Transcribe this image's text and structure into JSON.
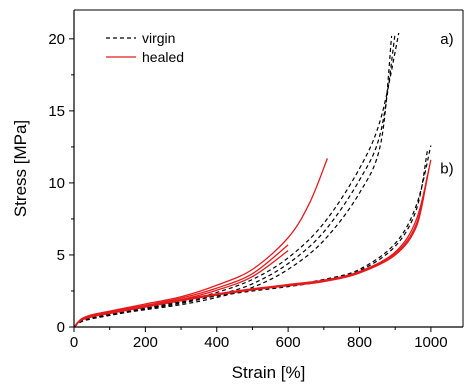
{
  "chart_data": {
    "type": "line",
    "title": "",
    "xlabel": "Strain [%]",
    "ylabel": "Stress [MPa]",
    "xlim": [
      0,
      1090
    ],
    "ylim": [
      0,
      22
    ],
    "x_ticks": [
      "0",
      "200",
      "400",
      "600",
      "800",
      "1000"
    ],
    "x_tick_values": [
      0,
      200,
      400,
      600,
      800,
      1000
    ],
    "y_ticks": [
      "0",
      "5",
      "10",
      "15",
      "20"
    ],
    "y_tick_values": [
      0,
      5,
      10,
      15,
      20
    ],
    "grid": false,
    "legend_position": "top-left",
    "legend": [
      {
        "label": "virgin",
        "style": "dashed",
        "color": "#000000"
      },
      {
        "label": "healed",
        "style": "solid",
        "color": "#e41a1c"
      }
    ],
    "annotations": [
      {
        "text": "a)",
        "x": 1045,
        "y": 20.0
      },
      {
        "text": "b)",
        "x": 1045,
        "y": 11.0
      }
    ],
    "series": [
      {
        "group": "virgin",
        "sample": "a",
        "points": [
          [
            0,
            0
          ],
          [
            20,
            0.45
          ],
          [
            50,
            0.7
          ],
          [
            100,
            0.95
          ],
          [
            200,
            1.35
          ],
          [
            300,
            1.8
          ],
          [
            400,
            2.4
          ],
          [
            500,
            3.3
          ],
          [
            600,
            4.8
          ],
          [
            700,
            7.2
          ],
          [
            800,
            11.0
          ],
          [
            860,
            14.5
          ],
          [
            910,
            20.4
          ]
        ]
      },
      {
        "group": "virgin",
        "sample": "a",
        "points": [
          [
            0,
            0
          ],
          [
            20,
            0.42
          ],
          [
            50,
            0.65
          ],
          [
            100,
            0.88
          ],
          [
            200,
            1.25
          ],
          [
            300,
            1.65
          ],
          [
            400,
            2.2
          ],
          [
            500,
            3.0
          ],
          [
            600,
            4.4
          ],
          [
            700,
            6.6
          ],
          [
            800,
            10.2
          ],
          [
            860,
            13.6
          ],
          [
            900,
            20.4
          ]
        ]
      },
      {
        "group": "virgin",
        "sample": "a",
        "points": [
          [
            0,
            0
          ],
          [
            20,
            0.4
          ],
          [
            50,
            0.62
          ],
          [
            100,
            0.85
          ],
          [
            200,
            1.2
          ],
          [
            300,
            1.55
          ],
          [
            400,
            2.05
          ],
          [
            500,
            2.75
          ],
          [
            600,
            4.0
          ],
          [
            700,
            6.0
          ],
          [
            800,
            9.3
          ],
          [
            860,
            12.8
          ],
          [
            890,
            20.2
          ]
        ]
      },
      {
        "group": "virgin",
        "sample": "b",
        "points": [
          [
            0,
            0
          ],
          [
            20,
            0.38
          ],
          [
            50,
            0.6
          ],
          [
            100,
            0.85
          ],
          [
            200,
            1.3
          ],
          [
            300,
            1.8
          ],
          [
            400,
            2.25
          ],
          [
            500,
            2.6
          ],
          [
            600,
            2.9
          ],
          [
            700,
            3.3
          ],
          [
            800,
            4.0
          ],
          [
            900,
            5.8
          ],
          [
            960,
            8.5
          ],
          [
            1000,
            12.6
          ]
        ]
      },
      {
        "group": "virgin",
        "sample": "b",
        "points": [
          [
            0,
            0
          ],
          [
            20,
            0.36
          ],
          [
            50,
            0.57
          ],
          [
            100,
            0.8
          ],
          [
            200,
            1.25
          ],
          [
            300,
            1.72
          ],
          [
            400,
            2.15
          ],
          [
            500,
            2.5
          ],
          [
            600,
            2.8
          ],
          [
            700,
            3.2
          ],
          [
            800,
            3.9
          ],
          [
            900,
            5.6
          ],
          [
            960,
            8.2
          ],
          [
            990,
            12.2
          ]
        ]
      },
      {
        "group": "healed",
        "sample": "a",
        "points": [
          [
            0,
            0
          ],
          [
            20,
            0.55
          ],
          [
            50,
            0.85
          ],
          [
            100,
            1.1
          ],
          [
            200,
            1.6
          ],
          [
            300,
            2.1
          ],
          [
            400,
            2.9
          ],
          [
            500,
            4.0
          ],
          [
            600,
            6.2
          ],
          [
            660,
            8.6
          ],
          [
            710,
            11.7
          ]
        ]
      },
      {
        "group": "healed",
        "sample": "a",
        "points": [
          [
            0,
            0
          ],
          [
            20,
            0.5
          ],
          [
            50,
            0.8
          ],
          [
            100,
            1.05
          ],
          [
            200,
            1.5
          ],
          [
            300,
            2.0
          ],
          [
            400,
            2.7
          ],
          [
            500,
            3.7
          ],
          [
            600,
            5.7
          ]
        ]
      },
      {
        "group": "healed",
        "sample": "a",
        "points": [
          [
            0,
            0
          ],
          [
            20,
            0.48
          ],
          [
            50,
            0.76
          ],
          [
            100,
            1.0
          ],
          [
            200,
            1.45
          ],
          [
            300,
            1.9
          ],
          [
            400,
            2.55
          ],
          [
            500,
            3.5
          ],
          [
            600,
            5.3
          ]
        ]
      },
      {
        "group": "healed",
        "sample": "b",
        "points": [
          [
            0,
            0
          ],
          [
            20,
            0.5
          ],
          [
            50,
            0.75
          ],
          [
            100,
            1.0
          ],
          [
            200,
            1.45
          ],
          [
            300,
            1.9
          ],
          [
            400,
            2.3
          ],
          [
            500,
            2.65
          ],
          [
            600,
            2.95
          ],
          [
            700,
            3.25
          ],
          [
            800,
            3.85
          ],
          [
            900,
            5.2
          ],
          [
            960,
            7.5
          ],
          [
            1000,
            11.6
          ]
        ]
      },
      {
        "group": "healed",
        "sample": "b",
        "points": [
          [
            0,
            0
          ],
          [
            20,
            0.48
          ],
          [
            50,
            0.72
          ],
          [
            100,
            0.96
          ],
          [
            200,
            1.4
          ],
          [
            300,
            1.85
          ],
          [
            400,
            2.25
          ],
          [
            500,
            2.6
          ],
          [
            600,
            2.9
          ],
          [
            700,
            3.2
          ],
          [
            800,
            3.8
          ],
          [
            900,
            5.1
          ],
          [
            960,
            7.2
          ],
          [
            995,
            11.0
          ]
        ]
      },
      {
        "group": "healed",
        "sample": "b",
        "points": [
          [
            0,
            0
          ],
          [
            20,
            0.46
          ],
          [
            50,
            0.7
          ],
          [
            100,
            0.94
          ],
          [
            200,
            1.38
          ],
          [
            300,
            1.82
          ],
          [
            400,
            2.22
          ],
          [
            500,
            2.57
          ],
          [
            600,
            2.86
          ],
          [
            700,
            3.15
          ],
          [
            800,
            3.75
          ],
          [
            900,
            5.0
          ],
          [
            960,
            7.0
          ],
          [
            990,
            10.5
          ]
        ]
      }
    ]
  },
  "colors": {
    "virgin": "#000000",
    "healed": "#e41a1c",
    "axis": "#000000"
  }
}
